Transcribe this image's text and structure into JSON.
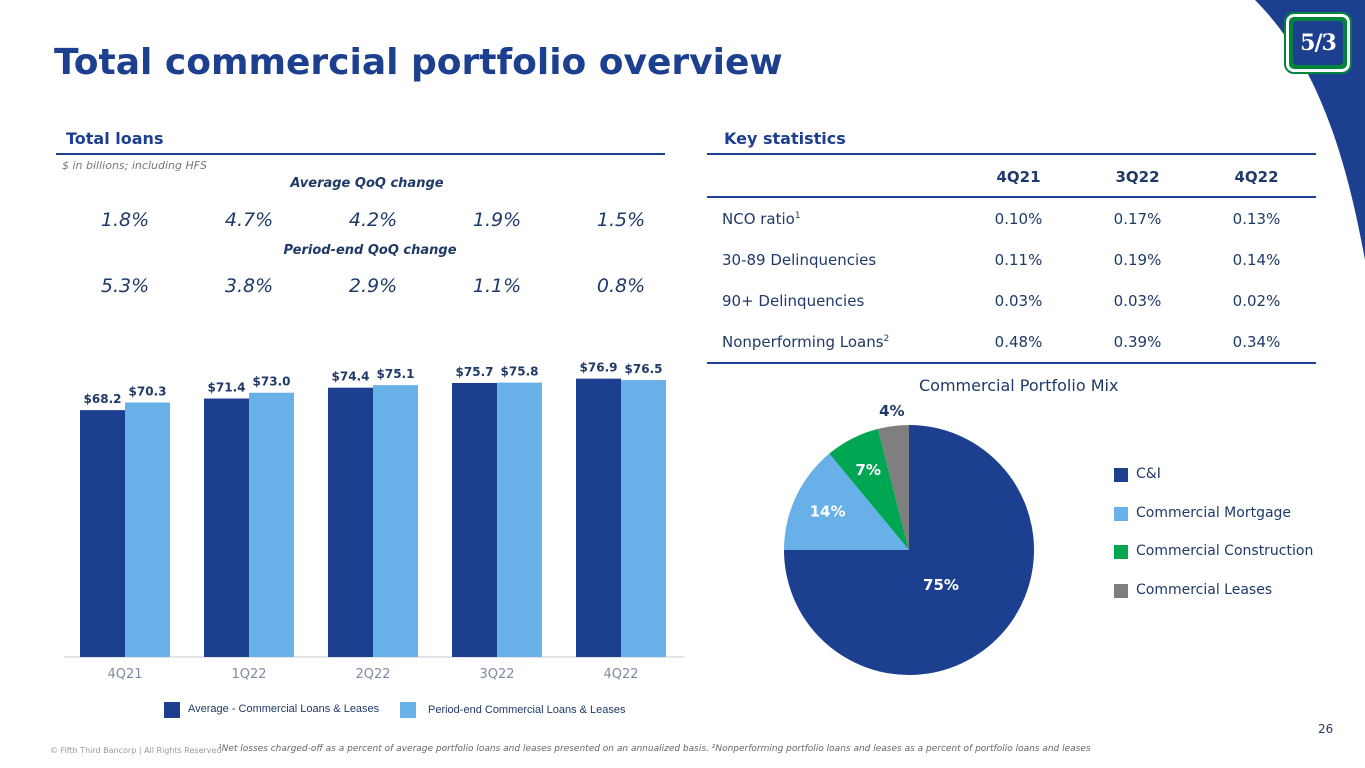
{
  "title": "Total commercial portfolio overview",
  "colors": {
    "navy": "#1d3f8f",
    "light_blue": "#68b0e8",
    "green": "#00a651",
    "gray": "#7f7f7f",
    "brand_green": "#00843d"
  },
  "logo_text": "5/3",
  "total_loans": {
    "header": "Total loans",
    "units": "$ in billions; including HFS",
    "avg_change_title": "Average QoQ change",
    "avg_changes": [
      "1.8%",
      "4.7%",
      "4.2%",
      "1.9%",
      "1.5%"
    ],
    "period_change_title": "Period-end QoQ change",
    "period_changes": [
      "5.3%",
      "3.8%",
      "2.9%",
      "1.1%",
      "0.8%"
    ]
  },
  "chart_data": [
    {
      "type": "bar",
      "title": "",
      "xlabel": "",
      "ylabel": "",
      "categories": [
        "4Q21",
        "1Q22",
        "2Q22",
        "3Q22",
        "4Q22"
      ],
      "series": [
        {
          "name": "Average - Commercial  Loans & Leases",
          "values": [
            68.2,
            71.4,
            74.4,
            75.7,
            76.9
          ],
          "labels": [
            "$68.2",
            "$71.4",
            "$74.4",
            "$75.7",
            "$76.9"
          ],
          "color": "#1d3f8f"
        },
        {
          "name": "Period-end Commercial Loans & Leases",
          "values": [
            70.3,
            73.0,
            75.1,
            75.8,
            76.5
          ],
          "labels": [
            "$70.3",
            "$73.0",
            "$75.1",
            "$75.8",
            "$76.5"
          ],
          "color": "#68b0e8"
        }
      ],
      "ylim": [
        0,
        80
      ],
      "legend": "bottom"
    },
    {
      "type": "pie",
      "title": "Commercial Portfolio Mix",
      "categories": [
        "C&I",
        "Commercial Mortgage",
        "Commercial Construction",
        "Commercial Leases"
      ],
      "values": [
        75,
        14,
        7,
        4
      ],
      "labels": [
        "75%",
        "14%",
        "7%",
        "4%"
      ],
      "colors": [
        "#1d3f8f",
        "#68b0e8",
        "#00a651",
        "#7f7f7f"
      ],
      "legend": "right"
    }
  ],
  "key_statistics": {
    "header": "Key statistics",
    "columns": [
      "4Q21",
      "3Q22",
      "4Q22"
    ],
    "rows": [
      {
        "label": "NCO ratio",
        "sup": "1",
        "values": [
          "0.10%",
          "0.17%",
          "0.13%"
        ]
      },
      {
        "label": "30-89 Delinquencies",
        "sup": "",
        "values": [
          "0.11%",
          "0.19%",
          "0.14%"
        ]
      },
      {
        "label": "90+ Delinquencies",
        "sup": "",
        "values": [
          "0.03%",
          "0.03%",
          "0.02%"
        ]
      },
      {
        "label": "Nonperforming Loans",
        "sup": "2",
        "values": [
          "0.48%",
          "0.39%",
          "0.34%"
        ]
      }
    ]
  },
  "page_number": "26",
  "copyright": "© Fifth Third Bancorp | All Rights Reserved",
  "footnote": "¹Net losses charged-off as a percent of average portfolio loans and leases presented on an annualized basis. ²Nonperforming portfolio loans and leases as a percent of portfolio loans and leases"
}
